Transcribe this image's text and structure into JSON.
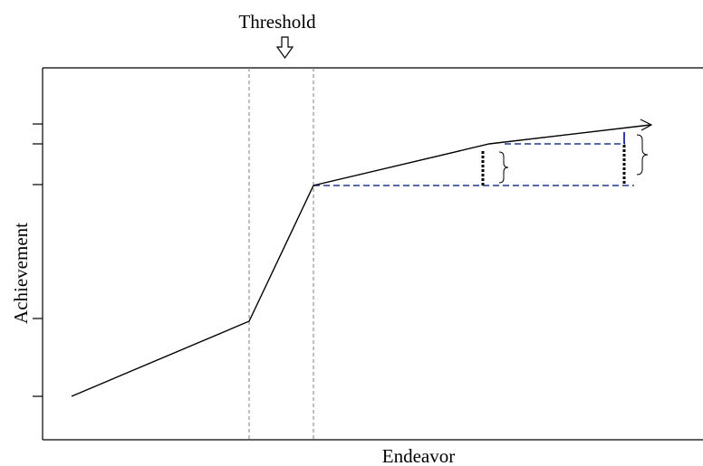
{
  "title": "Threshold",
  "x_axis_label": "Endeavor",
  "y_axis_label": "Achievement",
  "colors": {
    "curve": "#000000",
    "threshold_guides": "#7f7f7f",
    "reference_lines": "#1f3a93",
    "gain_marker": "#0000cc",
    "gap_markers": "#000000",
    "background": "#ffffff"
  },
  "icons": {
    "threshold_pointer": "down-arrow-outline-icon",
    "curve_end": "arrowhead-icon",
    "gap_brace": "right-curly-brace-icon"
  }
}
